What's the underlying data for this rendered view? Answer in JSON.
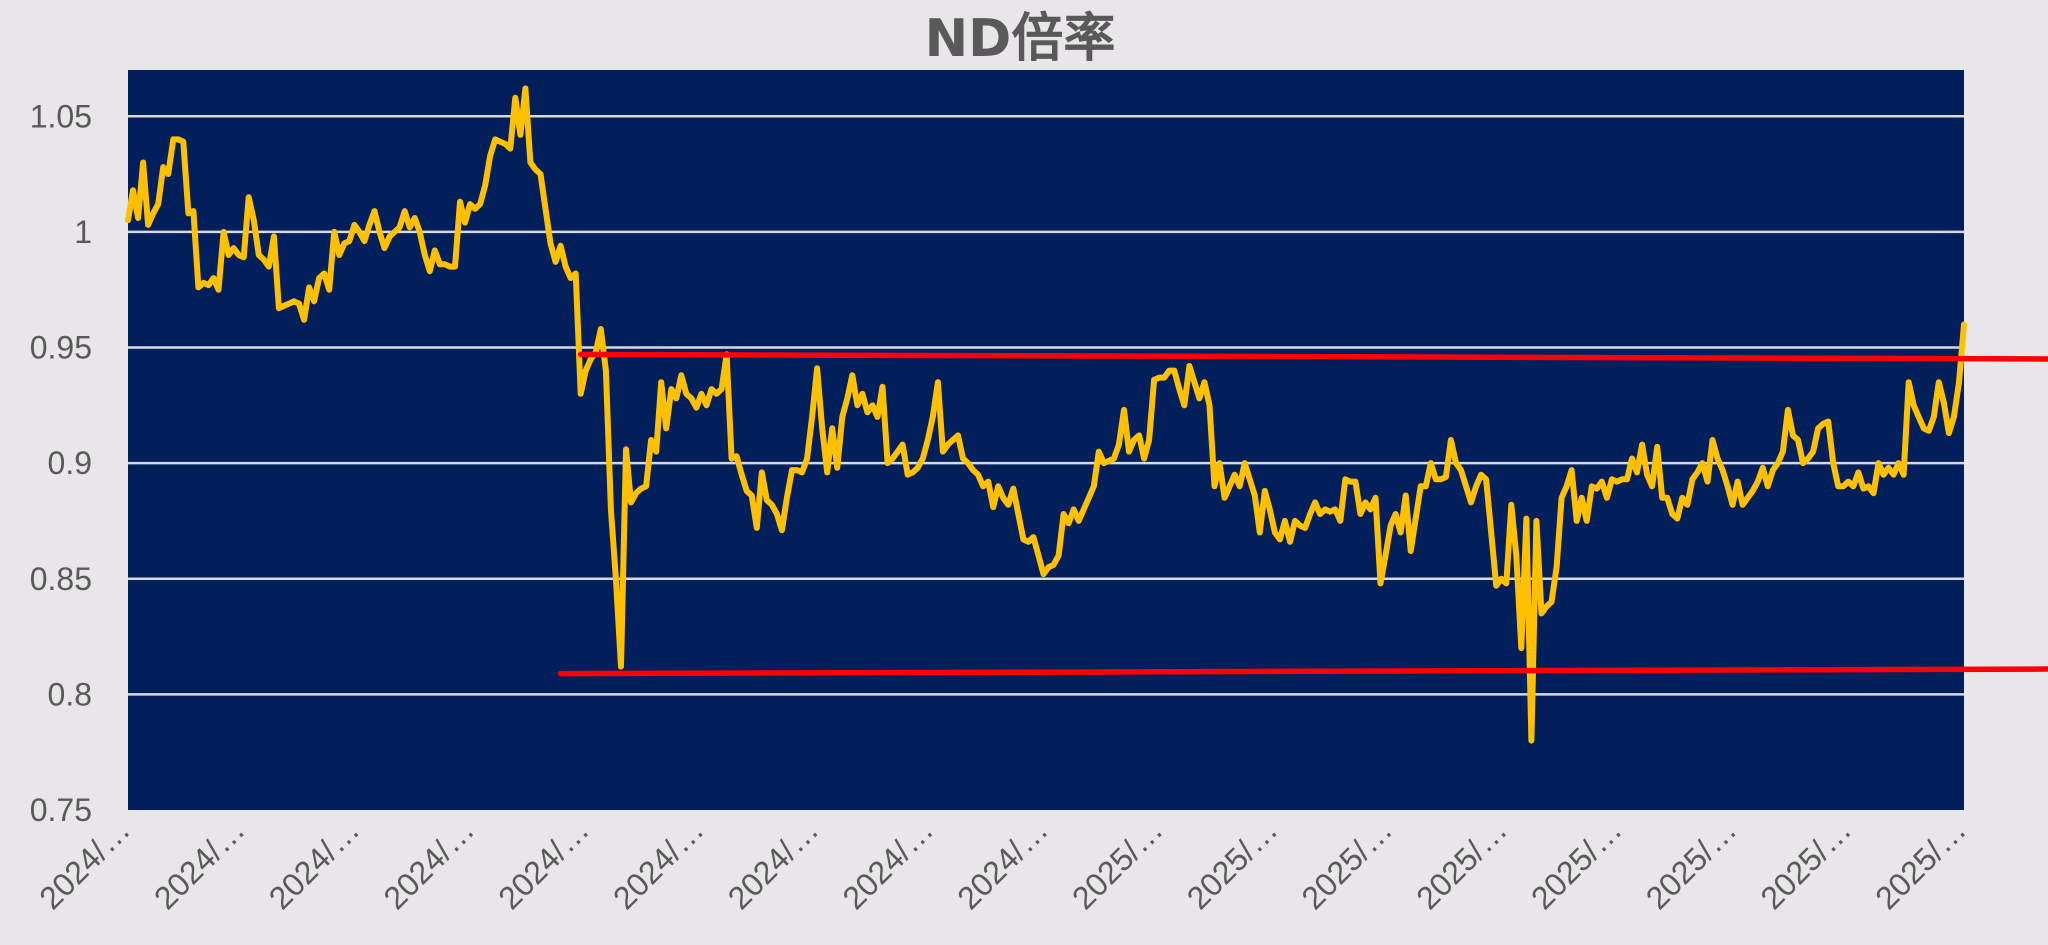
{
  "chart_data": {
    "type": "line",
    "title": "ND倍率",
    "xlabel": "",
    "ylabel": "",
    "ylim": [
      0.75,
      1.07
    ],
    "yticks": [
      0.75,
      0.8,
      0.85,
      0.9,
      0.95,
      1.0,
      1.05
    ],
    "ytick_labels": [
      "0.75",
      "0.8",
      "0.85",
      "0.9",
      "0.95",
      "1",
      "1.05"
    ],
    "grid": true,
    "plot_background": "#001f5b",
    "x_tick_labels": [
      "2024/…",
      "2024/…",
      "2024/…",
      "2024/…",
      "2024/…",
      "2024/…",
      "2024/…",
      "2024/…",
      "2024/…",
      "2025/…",
      "2025/…",
      "2025/…",
      "2025/…",
      "2025/…",
      "2025/…",
      "2025/…",
      "2025/…"
    ],
    "series": [
      {
        "color": "#ffc000",
        "values": [
          1.005,
          1.018,
          1.006,
          1.03,
          1.003,
          1.008,
          1.012,
          1.028,
          1.025,
          1.04,
          1.04,
          1.039,
          1.008,
          1.009,
          0.976,
          0.978,
          0.977,
          0.98,
          0.975,
          1.0,
          0.99,
          0.993,
          0.99,
          0.989,
          1.015,
          1.005,
          0.99,
          0.988,
          0.985,
          0.998,
          0.967,
          0.968,
          0.969,
          0.97,
          0.969,
          0.962,
          0.976,
          0.97,
          0.98,
          0.982,
          0.975,
          1.0,
          0.99,
          0.995,
          0.996,
          1.003,
          1.0,
          0.996,
          1.003,
          1.009,
          1.0,
          0.993,
          0.998,
          1.0,
          1.002,
          1.009,
          1.002,
          1.006,
          1.0,
          0.99,
          0.983,
          0.992,
          0.986,
          0.986,
          0.985,
          0.985,
          1.013,
          1.004,
          1.012,
          1.01,
          1.012,
          1.02,
          1.033,
          1.04,
          1.039,
          1.038,
          1.036,
          1.058,
          1.042,
          1.062,
          1.03,
          1.027,
          1.025,
          1.01,
          0.995,
          0.987,
          0.994,
          0.985,
          0.98,
          0.982,
          0.93,
          0.94,
          0.945,
          0.948,
          0.958,
          0.94,
          0.88,
          0.85,
          0.812,
          0.906,
          0.883,
          0.887,
          0.889,
          0.89,
          0.91,
          0.905,
          0.935,
          0.915,
          0.932,
          0.928,
          0.938,
          0.93,
          0.928,
          0.924,
          0.93,
          0.925,
          0.932,
          0.93,
          0.932,
          0.947,
          0.902,
          0.903,
          0.895,
          0.888,
          0.886,
          0.872,
          0.896,
          0.884,
          0.882,
          0.878,
          0.871,
          0.885,
          0.897,
          0.897,
          0.896,
          0.902,
          0.92,
          0.941,
          0.915,
          0.896,
          0.915,
          0.898,
          0.92,
          0.928,
          0.938,
          0.925,
          0.93,
          0.922,
          0.925,
          0.92,
          0.933,
          0.9,
          0.902,
          0.905,
          0.908,
          0.895,
          0.896,
          0.898,
          0.902,
          0.91,
          0.92,
          0.935,
          0.905,
          0.908,
          0.91,
          0.912,
          0.902,
          0.9,
          0.897,
          0.895,
          0.89,
          0.892,
          0.881,
          0.89,
          0.885,
          0.882,
          0.889,
          0.878,
          0.867,
          0.866,
          0.868,
          0.86,
          0.852,
          0.855,
          0.856,
          0.86,
          0.878,
          0.874,
          0.88,
          0.875,
          0.88,
          0.885,
          0.89,
          0.905,
          0.9,
          0.901,
          0.902,
          0.908,
          0.923,
          0.905,
          0.91,
          0.912,
          0.902,
          0.91,
          0.936,
          0.937,
          0.937,
          0.94,
          0.94,
          0.932,
          0.925,
          0.942,
          0.935,
          0.928,
          0.935,
          0.925,
          0.89,
          0.9,
          0.885,
          0.89,
          0.895,
          0.89,
          0.9,
          0.893,
          0.886,
          0.87,
          0.888,
          0.88,
          0.87,
          0.867,
          0.875,
          0.866,
          0.875,
          0.873,
          0.872,
          0.878,
          0.883,
          0.878,
          0.88,
          0.879,
          0.88,
          0.875,
          0.893,
          0.892,
          0.892,
          0.878,
          0.883,
          0.88,
          0.885,
          0.848,
          0.86,
          0.873,
          0.878,
          0.87,
          0.886,
          0.862,
          0.876,
          0.89,
          0.89,
          0.9,
          0.893,
          0.893,
          0.894,
          0.91,
          0.9,
          0.897,
          0.89,
          0.883,
          0.89,
          0.895,
          0.893,
          0.87,
          0.847,
          0.85,
          0.848,
          0.882,
          0.86,
          0.82,
          0.876,
          0.78,
          0.875,
          0.835,
          0.838,
          0.84,
          0.855,
          0.885,
          0.89,
          0.897,
          0.875,
          0.885,
          0.875,
          0.89,
          0.889,
          0.892,
          0.885,
          0.893,
          0.892,
          0.893,
          0.893,
          0.902,
          0.896,
          0.908,
          0.895,
          0.89,
          0.907,
          0.885,
          0.885,
          0.878,
          0.876,
          0.885,
          0.882,
          0.893,
          0.896,
          0.9,
          0.892,
          0.91,
          0.902,
          0.897,
          0.89,
          0.882,
          0.892,
          0.882,
          0.885,
          0.888,
          0.892,
          0.898,
          0.89,
          0.897,
          0.9,
          0.905,
          0.923,
          0.912,
          0.91,
          0.9,
          0.902,
          0.905,
          0.915,
          0.917,
          0.918,
          0.9,
          0.89,
          0.89,
          0.892,
          0.89,
          0.896,
          0.889,
          0.89,
          0.887,
          0.9,
          0.895,
          0.898,
          0.895,
          0.9,
          0.895,
          0.935,
          0.925,
          0.92,
          0.915,
          0.914,
          0.92,
          0.935,
          0.926,
          0.913,
          0.92,
          0.935,
          0.96
        ]
      },
      {
        "color": "#ff0000",
        "x_start_index": 90,
        "x_end_index": 391,
        "values": [
          0.947,
          0.945
        ]
      },
      {
        "color": "#ff0000",
        "x_start_index": 86,
        "x_end_index": 391,
        "values": [
          0.809,
          0.811
        ]
      }
    ]
  }
}
